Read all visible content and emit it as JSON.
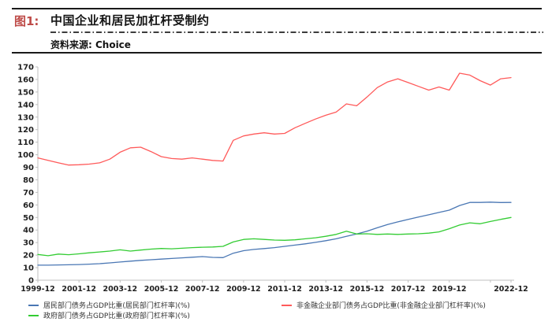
{
  "header": {
    "figure_label": "图1:",
    "title": "中国企业和居民加杠杆受制约",
    "source": "资料来源: Choice"
  },
  "colors": {
    "figure_label": "#be4b48",
    "axis": "#bfbfbf",
    "household_line": "#4a77b4",
    "government_line": "#33cc33",
    "corporate_line": "#ff5a5a"
  },
  "chart_data": {
    "type": "line",
    "title": "中国企业和居民加杠杆受制约",
    "xlabel": "",
    "ylabel": "",
    "grid": false,
    "legend_position": "bottom",
    "y_axis": {
      "min": 0,
      "max": 170,
      "step": 10
    },
    "x": [
      1999.92,
      2000.42,
      2000.92,
      2001.42,
      2001.92,
      2002.42,
      2002.92,
      2003.42,
      2003.92,
      2004.42,
      2004.92,
      2005.42,
      2005.92,
      2006.42,
      2006.92,
      2007.42,
      2007.92,
      2008.42,
      2008.92,
      2009.42,
      2009.92,
      2010.42,
      2010.92,
      2011.42,
      2011.92,
      2012.42,
      2012.92,
      2013.42,
      2013.92,
      2014.42,
      2014.92,
      2015.42,
      2015.92,
      2016.42,
      2016.92,
      2017.42,
      2017.92,
      2018.42,
      2018.92,
      2019.42,
      2019.92,
      2020.42,
      2020.92,
      2021.42,
      2021.92,
      2022.42,
      2022.92
    ],
    "x_ticks": [
      {
        "label": "1999-12",
        "year": 1999.92
      },
      {
        "label": "2001-12",
        "year": 2001.92
      },
      {
        "label": "2003-12",
        "year": 2003.92
      },
      {
        "label": "2005-12",
        "year": 2005.92
      },
      {
        "label": "2007-12",
        "year": 2007.92
      },
      {
        "label": "2009-12",
        "year": 2009.92
      },
      {
        "label": "2011-12",
        "year": 2011.92
      },
      {
        "label": "2013-12",
        "year": 2013.92
      },
      {
        "label": "2015-12",
        "year": 2015.92
      },
      {
        "label": "2017-12",
        "year": 2017.92
      },
      {
        "label": "2019-12",
        "year": 2019.92
      },
      {
        "label": "",
        "year": 2021.92
      },
      {
        "label": "2022-12",
        "year": 2022.92
      }
    ],
    "series": [
      {
        "name": "居民部门债务占GDP比重(居民部门杠杆率)(%)",
        "color": "#4a77b4",
        "values": [
          12,
          12,
          12.2,
          12.3,
          12.5,
          12.8,
          13.2,
          13.8,
          14.5,
          15.2,
          15.8,
          16.3,
          16.8,
          17.3,
          17.8,
          18.3,
          18.8,
          18.2,
          18,
          21.5,
          23.5,
          24.5,
          25.2,
          26,
          27,
          28,
          29,
          30.2,
          31.5,
          33,
          35,
          36.8,
          39,
          41.8,
          44.4,
          46.5,
          48.4,
          50.3,
          52.1,
          54,
          55.8,
          59.5,
          62,
          62,
          62.2,
          61.9,
          62
        ]
      },
      {
        "name": "政府部门债务占GDP比重(政府部门杠杆率)(%)",
        "color": "#33cc33",
        "values": [
          20.5,
          19.5,
          20.8,
          20.3,
          21,
          21.8,
          22.5,
          23.2,
          24.2,
          23.2,
          24,
          24.8,
          25.3,
          25,
          25.5,
          26,
          26.3,
          26.5,
          27,
          30.5,
          32.5,
          33,
          32.5,
          32,
          31.8,
          32.2,
          33,
          33.8,
          35,
          36.5,
          39,
          36.8,
          37,
          36.5,
          36.8,
          36.5,
          36.8,
          37,
          37.5,
          38.5,
          41,
          44,
          45.7,
          45,
          46.8,
          48.5,
          50
        ]
      },
      {
        "name": "非金融企业部门债务占GDP比重(非金融企业部门杠杆率)(%)",
        "color": "#ff5a5a",
        "values": [
          97.5,
          95.5,
          93.5,
          91.8,
          92,
          92.5,
          93.5,
          96.5,
          102,
          105.5,
          106,
          102.5,
          98.5,
          97,
          96.5,
          97.5,
          96.5,
          95.5,
          95,
          111.5,
          115,
          116.5,
          117.5,
          116.5,
          117,
          121.5,
          125,
          128.5,
          131.5,
          134,
          140.5,
          139,
          146,
          153.5,
          158,
          160.5,
          157.5,
          154.5,
          151.5,
          154,
          151.5,
          165,
          163.5,
          159,
          155.5,
          160.5,
          161.5
        ]
      }
    ]
  }
}
